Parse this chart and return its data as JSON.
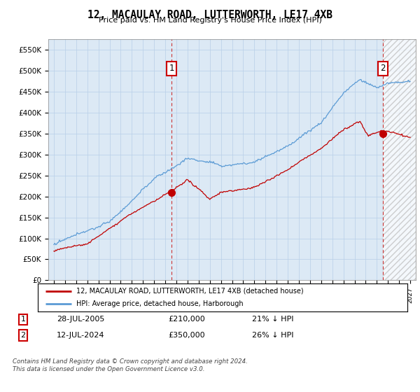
{
  "title": "12, MACAULAY ROAD, LUTTERWORTH, LE17 4XB",
  "subtitle": "Price paid vs. HM Land Registry's House Price Index (HPI)",
  "ylim": [
    0,
    575000
  ],
  "yticks": [
    0,
    50000,
    100000,
    150000,
    200000,
    250000,
    300000,
    350000,
    400000,
    450000,
    500000,
    550000
  ],
  "ytick_labels": [
    "£0",
    "£50K",
    "£100K",
    "£150K",
    "£200K",
    "£250K",
    "£300K",
    "£350K",
    "£400K",
    "£450K",
    "£500K",
    "£550K"
  ],
  "xlim_start": 1994.5,
  "xlim_end": 2027.5,
  "xticks": [
    1995,
    1996,
    1997,
    1998,
    1999,
    2000,
    2001,
    2002,
    2003,
    2004,
    2005,
    2006,
    2007,
    2008,
    2009,
    2010,
    2011,
    2012,
    2013,
    2014,
    2015,
    2016,
    2017,
    2018,
    2019,
    2020,
    2021,
    2022,
    2023,
    2024,
    2025,
    2026,
    2027
  ],
  "hpi_color": "#5b9bd5",
  "price_color": "#c00000",
  "plot_bg_color": "#dce9f5",
  "sale1_x": 2005.57,
  "sale1_y": 210000,
  "sale2_x": 2024.54,
  "sale2_y": 350000,
  "legend_line1": "12, MACAULAY ROAD, LUTTERWORTH, LE17 4XB (detached house)",
  "legend_line2": "HPI: Average price, detached house, Harborough",
  "table_row1": [
    "1",
    "28-JUL-2005",
    "£210,000",
    "21% ↓ HPI"
  ],
  "table_row2": [
    "2",
    "12-JUL-2024",
    "£350,000",
    "26% ↓ HPI"
  ],
  "footnote": "Contains HM Land Registry data © Crown copyright and database right 2024.\nThis data is licensed under the Open Government Licence v3.0.",
  "background_color": "#ffffff",
  "grid_color": "#b8cfe8"
}
